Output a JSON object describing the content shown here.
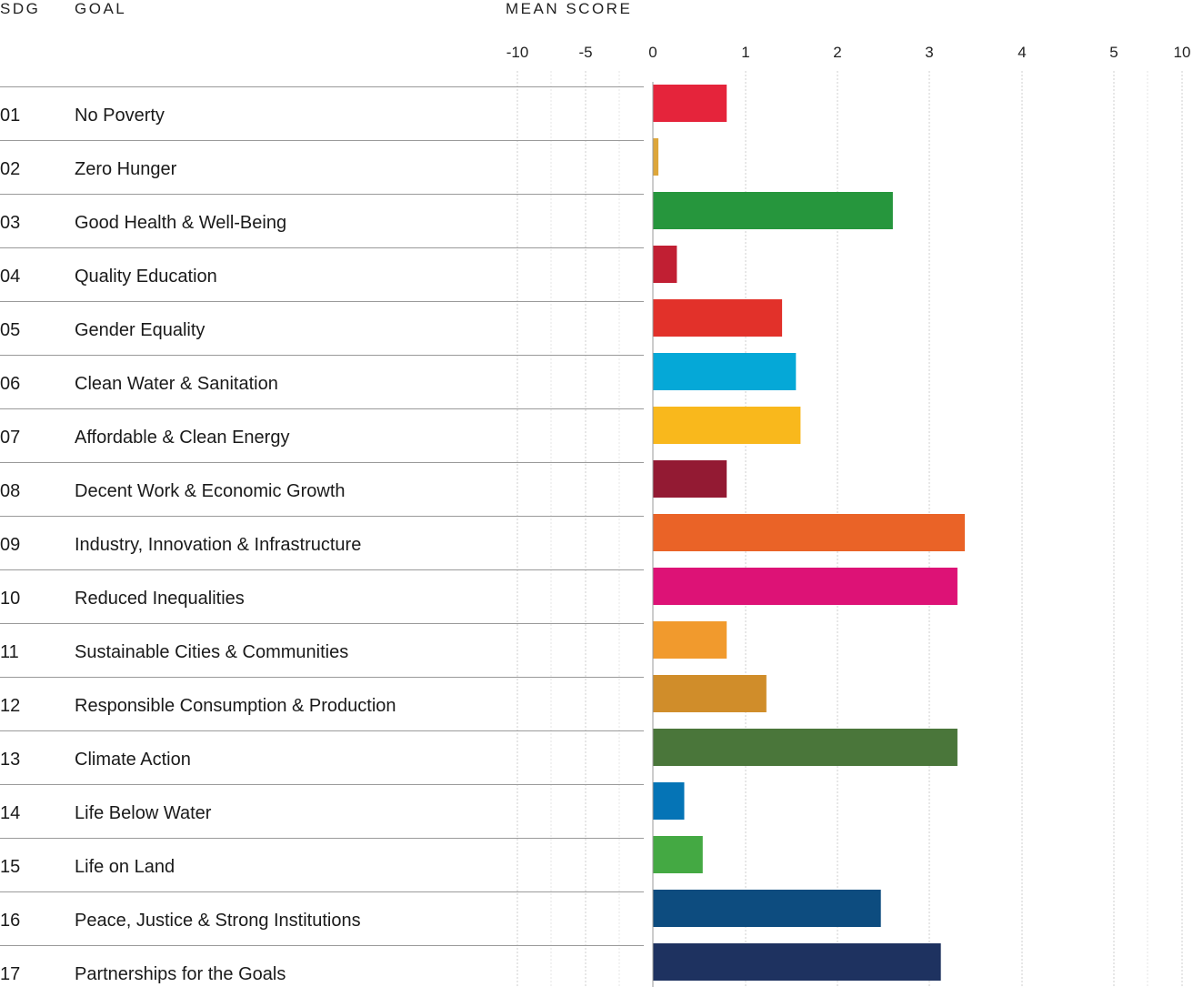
{
  "headers": {
    "sdg": "SDG",
    "goal": "GOAL",
    "score": "MEAN SCORE"
  },
  "chart_data": {
    "type": "bar",
    "orientation": "horizontal",
    "x_ticks": [
      "-10",
      "-5",
      "0",
      "1",
      "2",
      "3",
      "4",
      "5",
      "10"
    ],
    "grid": true,
    "rows": [
      {
        "sdg": "01",
        "goal": "No Poverty",
        "value": 0.8,
        "color": "#E5243B"
      },
      {
        "sdg": "02",
        "goal": "Zero Hunger",
        "value": 0.06,
        "color": "#DDA63A"
      },
      {
        "sdg": "03",
        "goal": "Good Health & Well-Being",
        "value": 2.6,
        "color": "#26963D"
      },
      {
        "sdg": "04",
        "goal": "Quality Education",
        "value": 0.26,
        "color": "#C11F33"
      },
      {
        "sdg": "05",
        "goal": "Gender Equality",
        "value": 1.4,
        "color": "#E2312A"
      },
      {
        "sdg": "06",
        "goal": "Clean Water & Sanitation",
        "value": 1.55,
        "color": "#05A8D7"
      },
      {
        "sdg": "07",
        "goal": "Affordable & Clean Energy",
        "value": 1.6,
        "color": "#F9B81C"
      },
      {
        "sdg": "08",
        "goal": "Decent Work & Economic Growth",
        "value": 0.8,
        "color": "#931A33"
      },
      {
        "sdg": "09",
        "goal": "Industry, Innovation & Infrastructure",
        "value": 3.38,
        "color": "#EA6327"
      },
      {
        "sdg": "10",
        "goal": "Reduced Inequalities",
        "value": 3.3,
        "color": "#DD1276"
      },
      {
        "sdg": "11",
        "goal": "Sustainable Cities & Communities",
        "value": 0.8,
        "color": "#F19A2D"
      },
      {
        "sdg": "12",
        "goal": "Responsible Consumption & Production",
        "value": 1.23,
        "color": "#D08D2A"
      },
      {
        "sdg": "13",
        "goal": "Climate Action",
        "value": 3.3,
        "color": "#4A763A"
      },
      {
        "sdg": "14",
        "goal": "Life Below Water",
        "value": 0.34,
        "color": "#0574B6"
      },
      {
        "sdg": "15",
        "goal": "Life on Land",
        "value": 0.54,
        "color": "#44A943"
      },
      {
        "sdg": "16",
        "goal": "Peace, Justice & Strong Institutions",
        "value": 2.47,
        "color": "#0D4C7F"
      },
      {
        "sdg": "17",
        "goal": "Partnerships for the Goals",
        "value": 3.12,
        "color": "#1E3260"
      }
    ]
  }
}
